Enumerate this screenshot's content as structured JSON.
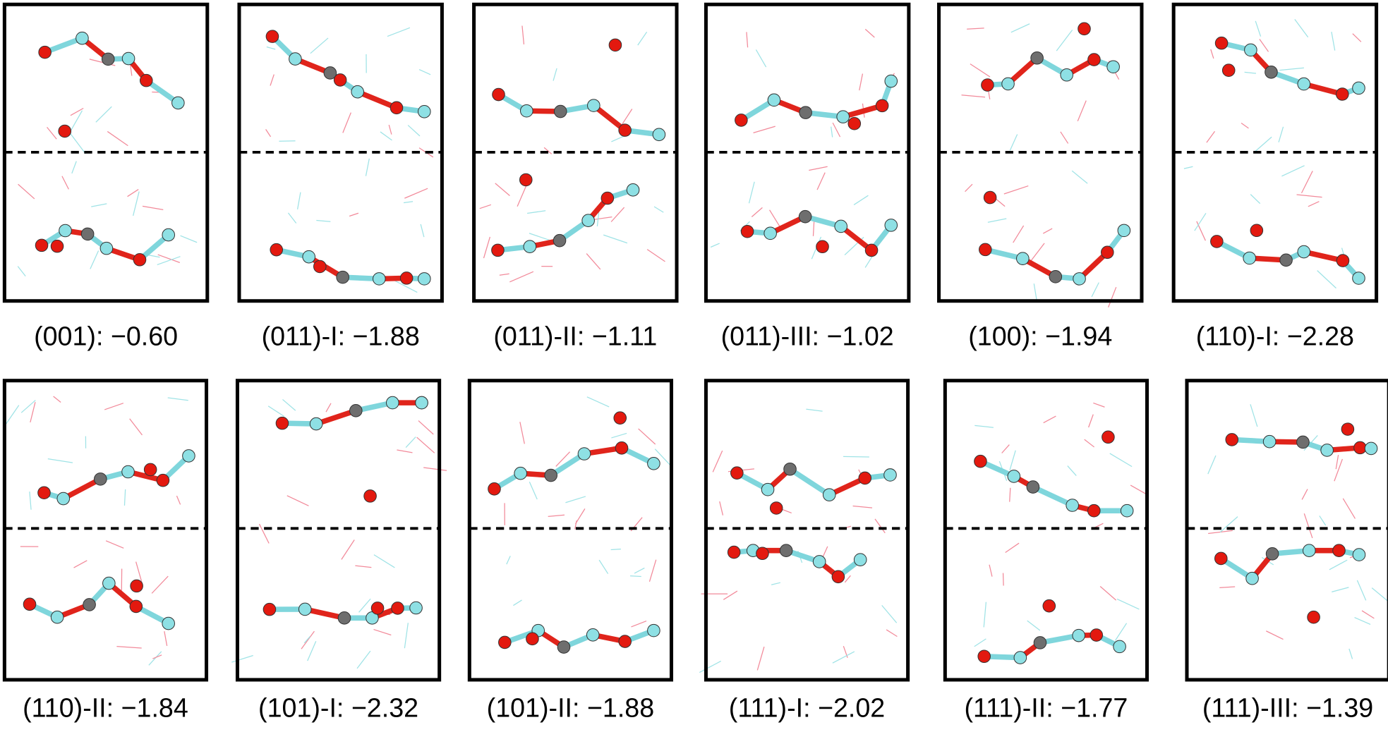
{
  "panels": [
    {
      "label": "(001): −0.60"
    },
    {
      "label": "(011)-I: −1.88"
    },
    {
      "label": "(011)-II: −1.11"
    },
    {
      "label": "(011)-III: −1.02"
    },
    {
      "label": "(100): −1.94"
    },
    {
      "label": "(110)-I: −2.28"
    },
    {
      "label": "(110)-II: −1.84"
    },
    {
      "label": "(101)-I: −2.32"
    },
    {
      "label": "(101)-II: −1.88"
    },
    {
      "label": "(111)-I: −2.02"
    },
    {
      "label": "(111)-II: −1.77"
    },
    {
      "label": "(111)-III: −1.39"
    }
  ]
}
